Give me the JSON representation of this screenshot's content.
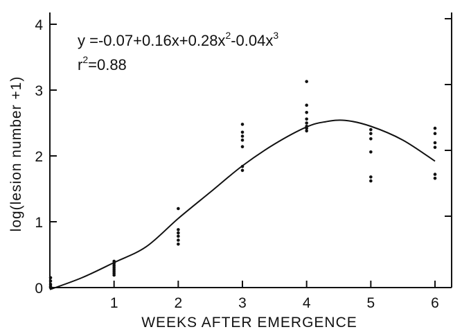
{
  "chart_data": {
    "type": "scatter",
    "xlabel": "WEEKS AFTER EMERGENCE",
    "ylabel": "log(lesion number +1)",
    "xlim": [
      0,
      6.2
    ],
    "ylim": [
      0,
      4.2
    ],
    "x_ticks": [
      1,
      2,
      3,
      4,
      5,
      6
    ],
    "x_tick_labels": [
      "1",
      "2",
      "3",
      "4",
      "5",
      "6"
    ],
    "y_ticks": [
      0,
      1,
      2,
      3,
      4
    ],
    "y_tick_labels": [
      "0",
      "1",
      "2",
      "3",
      "4"
    ],
    "grid": false,
    "annotation": {
      "line1": {
        "lead": "y =-0.07+0.16x+0.28x",
        "exp1": "2",
        "mid": "-0.04x",
        "exp2": "3"
      },
      "line2": {
        "lead": "r",
        "exp": "2",
        "tail": "=0.88"
      }
    },
    "points": [
      {
        "x": 0,
        "y": 0.15
      },
      {
        "x": 0,
        "y": 0.1
      },
      {
        "x": 0,
        "y": 0.05
      },
      {
        "x": 0,
        "y": 0.02
      },
      {
        "x": 0,
        "y": 0.0
      },
      {
        "x": 1,
        "y": 0.4
      },
      {
        "x": 1,
        "y": 0.37
      },
      {
        "x": 1,
        "y": 0.34
      },
      {
        "x": 1,
        "y": 0.31
      },
      {
        "x": 1,
        "y": 0.28
      },
      {
        "x": 1,
        "y": 0.25
      },
      {
        "x": 1,
        "y": 0.22
      },
      {
        "x": 1,
        "y": 0.19
      },
      {
        "x": 2,
        "y": 1.2
      },
      {
        "x": 2,
        "y": 0.88
      },
      {
        "x": 2,
        "y": 0.83
      },
      {
        "x": 2,
        "y": 0.78
      },
      {
        "x": 2,
        "y": 0.72
      },
      {
        "x": 2,
        "y": 0.66
      },
      {
        "x": 3,
        "y": 2.48
      },
      {
        "x": 3,
        "y": 2.36
      },
      {
        "x": 3,
        "y": 2.3
      },
      {
        "x": 3,
        "y": 2.24
      },
      {
        "x": 3,
        "y": 2.14
      },
      {
        "x": 3,
        "y": 1.84
      },
      {
        "x": 3,
        "y": 1.78
      },
      {
        "x": 4,
        "y": 3.13
      },
      {
        "x": 4,
        "y": 2.77
      },
      {
        "x": 4,
        "y": 2.66
      },
      {
        "x": 4,
        "y": 2.56
      },
      {
        "x": 4,
        "y": 2.5
      },
      {
        "x": 4,
        "y": 2.45
      },
      {
        "x": 4,
        "y": 2.42
      },
      {
        "x": 4,
        "y": 2.38
      },
      {
        "x": 5,
        "y": 2.4
      },
      {
        "x": 5,
        "y": 2.34
      },
      {
        "x": 5,
        "y": 2.26
      },
      {
        "x": 5,
        "y": 2.06
      },
      {
        "x": 5,
        "y": 1.68
      },
      {
        "x": 5,
        "y": 1.62
      },
      {
        "x": 6,
        "y": 2.42
      },
      {
        "x": 6,
        "y": 2.34
      },
      {
        "x": 6,
        "y": 2.2
      },
      {
        "x": 6,
        "y": 2.13
      },
      {
        "x": 6,
        "y": 1.72
      },
      {
        "x": 6,
        "y": 1.66
      }
    ],
    "fitted_curve": [
      {
        "x": 0,
        "y": -0.03
      },
      {
        "x": 0.5,
        "y": 0.15
      },
      {
        "x": 1,
        "y": 0.38
      },
      {
        "x": 1.5,
        "y": 0.62
      },
      {
        "x": 2,
        "y": 1.05
      },
      {
        "x": 2.5,
        "y": 1.45
      },
      {
        "x": 3,
        "y": 1.85
      },
      {
        "x": 3.5,
        "y": 2.18
      },
      {
        "x": 4,
        "y": 2.44
      },
      {
        "x": 4.3,
        "y": 2.52
      },
      {
        "x": 4.6,
        "y": 2.54
      },
      {
        "x": 5,
        "y": 2.45
      },
      {
        "x": 5.5,
        "y": 2.24
      },
      {
        "x": 6,
        "y": 1.92
      }
    ]
  }
}
